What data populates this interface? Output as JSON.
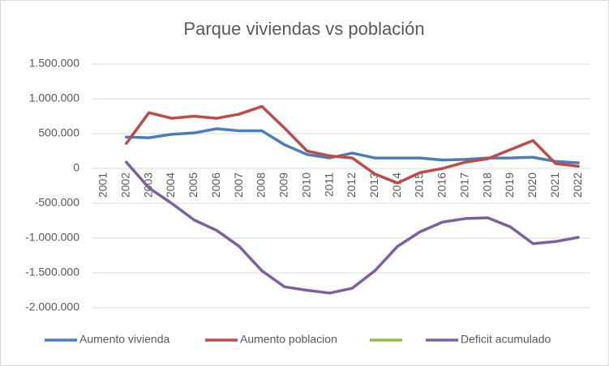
{
  "chart_data": {
    "type": "line",
    "title": "Parque viviendas vs población",
    "categories": [
      "2001",
      "2002",
      "2003",
      "2004",
      "2005",
      "2006",
      "2007",
      "2008",
      "2009",
      "2010",
      "2011",
      "2012",
      "2013",
      "2014",
      "2015",
      "2016",
      "2017",
      "2018",
      "2019",
      "2020",
      "2021",
      "2022"
    ],
    "series": [
      {
        "name": "Aumento vivienda",
        "color": "#4a7ebb",
        "values": [
          null,
          450000,
          440000,
          490000,
          510000,
          570000,
          540000,
          540000,
          340000,
          200000,
          150000,
          220000,
          150000,
          150000,
          150000,
          120000,
          130000,
          150000,
          150000,
          160000,
          100000,
          80000
        ]
      },
      {
        "name": "Aumento poblacion",
        "color": "#be4b48",
        "values": [
          null,
          360000,
          800000,
          720000,
          750000,
          720000,
          780000,
          890000,
          580000,
          250000,
          180000,
          150000,
          -80000,
          -210000,
          -60000,
          0,
          90000,
          140000,
          270000,
          400000,
          70000,
          30000
        ]
      },
      {
        "color": "#98b954",
        "values": [
          null,
          null,
          null,
          null,
          null,
          null,
          null,
          null,
          null,
          null,
          null,
          null,
          null,
          null,
          null,
          null,
          null,
          null,
          null,
          null,
          null,
          null
        ]
      },
      {
        "name": "Deficit acumulado",
        "color": "#7d60a0",
        "values": [
          null,
          90000,
          -280000,
          -500000,
          -740000,
          -890000,
          -1120000,
          -1470000,
          -1700000,
          -1750000,
          -1790000,
          -1720000,
          -1470000,
          -1120000,
          -910000,
          -770000,
          -720000,
          -710000,
          -840000,
          -1080000,
          -1050000,
          -990000
        ]
      }
    ],
    "ylim": [
      -2000000,
      1500000
    ],
    "yticks": [
      {
        "value": -2000000,
        "label": "-2.000.000"
      },
      {
        "value": -1500000,
        "label": "-1.500.000"
      },
      {
        "value": -1000000,
        "label": "-1.000.000"
      },
      {
        "value": -500000,
        "label": "-500.000"
      },
      0,
      {
        "value": 500000,
        "label": "500.000"
      },
      {
        "value": 1000000,
        "label": "1.000.000"
      },
      {
        "value": 1500000,
        "label": "1.500.000"
      }
    ],
    "grid": true,
    "legend": "bottom"
  }
}
